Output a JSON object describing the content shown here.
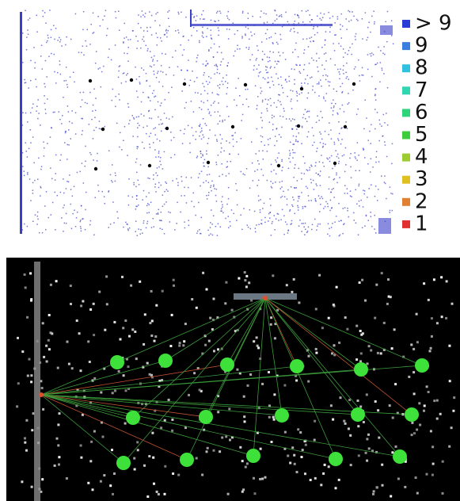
{
  "legend": {
    "items": [
      {
        "label": "> 9",
        "color": "#2a3bd6"
      },
      {
        "label": "9",
        "color": "#3a7ee0"
      },
      {
        "label": "8",
        "color": "#30c0e0"
      },
      {
        "label": "7",
        "color": "#2fd6b0"
      },
      {
        "label": "6",
        "color": "#2ed47a"
      },
      {
        "label": "5",
        "color": "#3ccc3c"
      },
      {
        "label": "4",
        "color": "#9ccc30"
      },
      {
        "label": "3",
        "color": "#e0c020"
      },
      {
        "label": "2",
        "color": "#e08030"
      },
      {
        "label": "1",
        "color": "#e03030"
      }
    ]
  }
}
